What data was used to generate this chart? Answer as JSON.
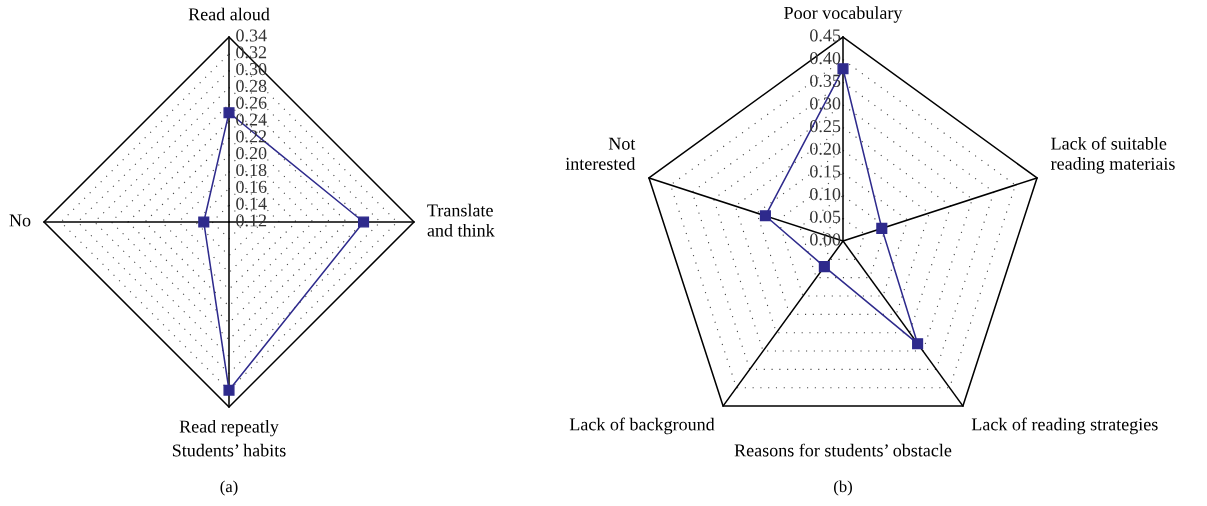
{
  "chart_data": [
    {
      "type": "radar",
      "categories": [
        "Read aloud",
        "Translate\nand think",
        "Read repeatly",
        "No"
      ],
      "xlabel": "Students’ habits",
      "annotations": [
        "(a)"
      ],
      "ylim": [
        0.12,
        0.34
      ],
      "yticks": [
        {
          "value": 0.12,
          "label": "0.12"
        },
        {
          "value": 0.14,
          "label": "0.14"
        },
        {
          "value": 0.16,
          "label": "0.16"
        },
        {
          "value": 0.18,
          "label": "0.18"
        },
        {
          "value": 0.2,
          "label": "0.20"
        },
        {
          "value": 0.22,
          "label": "0.22"
        },
        {
          "value": 0.24,
          "label": "0.24"
        },
        {
          "value": 0.26,
          "label": "0.26"
        },
        {
          "value": 0.28,
          "label": "0.28"
        },
        {
          "value": 0.3,
          "label": "0.30"
        },
        {
          "value": 0.32,
          "label": "0.32"
        },
        {
          "value": 0.34,
          "label": "0.34"
        }
      ],
      "grid": true,
      "marker": "square",
      "series": [
        {
          "color": "#2e2a8c",
          "values": [
            0.25,
            0.28,
            0.32,
            0.15
          ]
        }
      ]
    },
    {
      "type": "radar",
      "categories": [
        "Poor vocabulary",
        "Lack of suitable\nreading materiais",
        "Lack of reading strategies",
        "Lack of background",
        "Not\ninterested"
      ],
      "xlabel": "Reasons for students’ obstacle",
      "annotations": [
        "(b)"
      ],
      "ylim": [
        0,
        0.45
      ],
      "yticks": [
        {
          "value": 0,
          "label": "0.00"
        },
        {
          "value": 0.05,
          "label": "0.05"
        },
        {
          "value": 0.1,
          "label": "0.10"
        },
        {
          "value": 0.15,
          "label": "0.15"
        },
        {
          "value": 0.2,
          "label": "0.20"
        },
        {
          "value": 0.25,
          "label": "0.25"
        },
        {
          "value": 0.3,
          "label": "0.30"
        },
        {
          "value": 0.35,
          "label": "0.35"
        },
        {
          "value": 0.4,
          "label": "0.40"
        },
        {
          "value": 0.45,
          "label": "0.45"
        }
      ],
      "grid": true,
      "marker": "square",
      "series": [
        {
          "color": "#2e2a8c",
          "values": [
            0.38,
            0.09,
            0.28,
            0.07,
            0.18
          ]
        }
      ]
    }
  ]
}
